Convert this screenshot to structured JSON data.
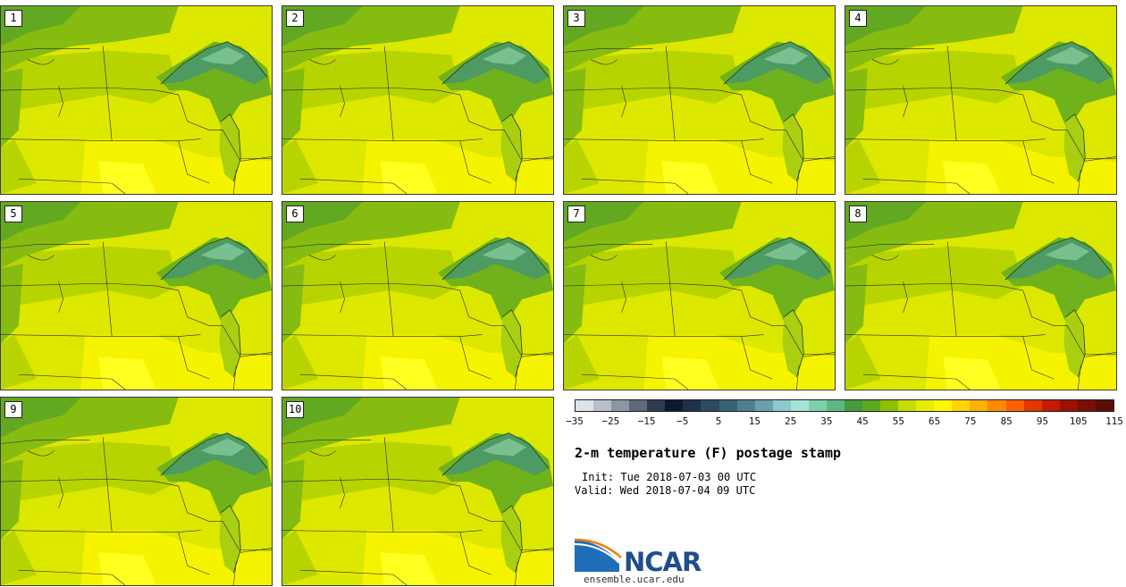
{
  "panels": [
    {
      "label": "1"
    },
    {
      "label": "2"
    },
    {
      "label": "3"
    },
    {
      "label": "4"
    },
    {
      "label": "5"
    },
    {
      "label": "6"
    },
    {
      "label": "7"
    },
    {
      "label": "8"
    },
    {
      "label": "9"
    },
    {
      "label": "10"
    }
  ],
  "colorbar": {
    "colors": [
      "#dde3ea",
      "#b8bfc8",
      "#8d96a3",
      "#5e6a7b",
      "#2e3a4e",
      "#0c1a30",
      "#1f3048",
      "#2b4b60",
      "#3a6275",
      "#4f7e90",
      "#6aa0ae",
      "#8ec9cc",
      "#a2e4d9",
      "#7ed0a8",
      "#5fb882",
      "#469a3c",
      "#5ea81e",
      "#8fc000",
      "#c4dc00",
      "#e6ee00",
      "#fff600",
      "#ffd400",
      "#ffb000",
      "#ff8a00",
      "#ff5e00",
      "#e43600",
      "#c21c00",
      "#9a1200",
      "#781008",
      "#5a0c06"
    ],
    "tick_labels": [
      "−35",
      "−25",
      "−15",
      "−5",
      "5",
      "15",
      "25",
      "35",
      "45",
      "55",
      "65",
      "75",
      "85",
      "95",
      "105",
      "115"
    ]
  },
  "title": "2-m temperature (F) postage stamp",
  "init": "Init: Tue 2018-07-03 00 UTC",
  "valid": "Valid: Wed 2018-07-04 09 UTC",
  "logo": {
    "text": "NCAR",
    "icon": "ncar-logo-icon",
    "colors": {
      "blue": "#1f4e8c",
      "orange": "#f07d00"
    }
  },
  "website": "ensemble.ucar.edu",
  "map_colors": {
    "lake": "#5aa56a",
    "lake_deep": "#78c090",
    "cool": "#4f9e24",
    "mid": "#8fc000",
    "warm": "#c4dc00",
    "hot": "#fff200",
    "border": "#2a2a2a"
  }
}
